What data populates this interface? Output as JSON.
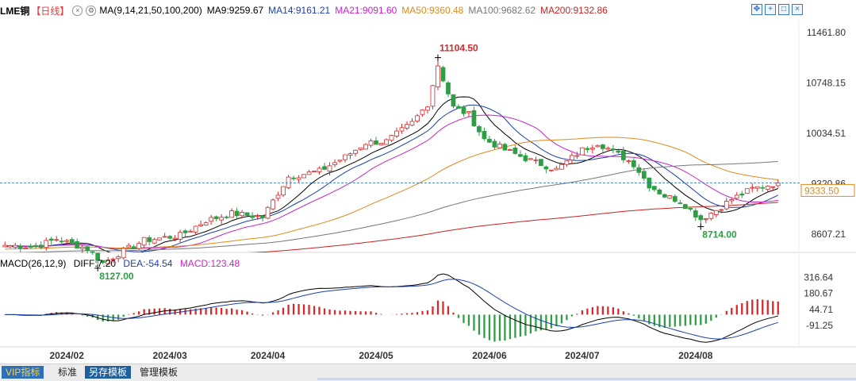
{
  "header": {
    "symbol": "LME铜",
    "period": "【日线】",
    "ma_label": "MA(9,14,21,50,100,200)",
    "ma_values": [
      {
        "text": "MA9:9259.67",
        "color": "#000000"
      },
      {
        "text": "MA14:9161.21",
        "color": "#1c3fb0"
      },
      {
        "text": "MA21:9091.60",
        "color": "#cc22cc"
      },
      {
        "text": "MA50:9360.48",
        "color": "#e08a1a"
      },
      {
        "text": "MA100:9682.62",
        "color": "#777777"
      },
      {
        "text": "MA200:9132.86",
        "color": "#cc2222"
      }
    ]
  },
  "macd_header": {
    "label": "MACD(26,12,9)",
    "diff": "DIFF:7.20",
    "dea": "DEA:-54.54",
    "macd": "MACD:123.48",
    "colors": {
      "label": "#000000",
      "diff": "#000000",
      "dea": "#1c3fb0",
      "macd": "#cc22cc"
    }
  },
  "toolbar": {
    "tabs": [
      "VIP指标",
      "标准",
      "另存模板",
      "管理模板"
    ]
  },
  "chart_data": {
    "type": "candlestick",
    "price_axis": {
      "ticks": [
        "11461.80",
        "10748.15",
        "10034.51",
        "9320.86",
        "8607.21"
      ],
      "range": [
        8350,
        11650
      ]
    },
    "macd_axis": {
      "ticks": [
        "316.64",
        "180.67",
        "44.71",
        "-91.25"
      ],
      "range": [
        -240,
        380
      ]
    },
    "x_ticks": [
      {
        "label": "2024/02",
        "index": 12
      },
      {
        "label": "2024/03",
        "index": 32
      },
      {
        "label": "2024/04",
        "index": 51
      },
      {
        "label": "2024/05",
        "index": 72
      },
      {
        "label": "2024/06",
        "index": 94
      },
      {
        "label": "2024/07",
        "index": 112
      },
      {
        "label": "2024/08",
        "index": 134
      }
    ],
    "current_price": "9333.50",
    "current_value": 9333.5,
    "annotations": [
      {
        "text": "11104.50",
        "index": 84,
        "value": 11104.5,
        "type": "high"
      },
      {
        "text": "8127.00",
        "index": 18,
        "value": 8127,
        "type": "low"
      },
      {
        "text": "8714.00",
        "index": 135,
        "value": 8714,
        "type": "low"
      }
    ],
    "close_anchors": [
      [
        0,
        8450
      ],
      [
        6,
        8430
      ],
      [
        10,
        8540
      ],
      [
        16,
        8400
      ],
      [
        19,
        8200
      ],
      [
        22,
        8330
      ],
      [
        27,
        8520
      ],
      [
        34,
        8590
      ],
      [
        39,
        8800
      ],
      [
        44,
        8900
      ],
      [
        50,
        8850
      ],
      [
        55,
        9420
      ],
      [
        61,
        9500
      ],
      [
        66,
        9700
      ],
      [
        70,
        9900
      ],
      [
        74,
        9920
      ],
      [
        79,
        10180
      ],
      [
        82,
        10450
      ],
      [
        84,
        11000
      ],
      [
        87,
        10400
      ],
      [
        90,
        10300
      ],
      [
        93,
        9950
      ],
      [
        97,
        9800
      ],
      [
        102,
        9650
      ],
      [
        107,
        9520
      ],
      [
        112,
        9800
      ],
      [
        115,
        9900
      ],
      [
        118,
        9780
      ],
      [
        122,
        9600
      ],
      [
        125,
        9300
      ],
      [
        128,
        9150
      ],
      [
        131,
        9080
      ],
      [
        135,
        8820
      ],
      [
        138,
        8950
      ],
      [
        141,
        9100
      ],
      [
        145,
        9250
      ],
      [
        150,
        9333.5
      ]
    ],
    "ma_series": [
      {
        "name": "MA9",
        "period": 9,
        "color": "#000000"
      },
      {
        "name": "MA14",
        "period": 14,
        "color": "#1c3fb0"
      },
      {
        "name": "MA21",
        "period": 21,
        "color": "#cc22cc"
      },
      {
        "name": "MA50",
        "period": 50,
        "color": "#e08a1a"
      },
      {
        "name": "MA100",
        "period": 100,
        "color": "#777777"
      },
      {
        "name": "MA200",
        "period": 200,
        "color": "#cc2222"
      }
    ],
    "up_color": "#d7282a",
    "down_color": "#2e9e45"
  }
}
